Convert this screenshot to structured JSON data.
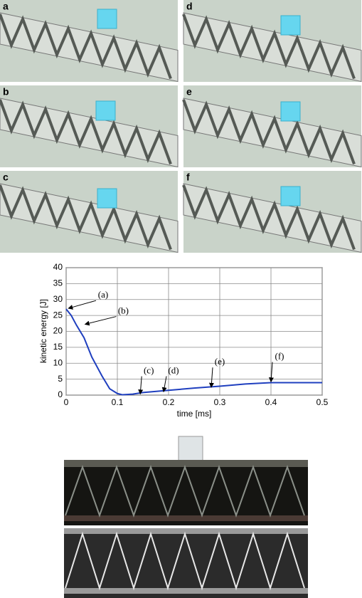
{
  "panels": {
    "labels": [
      "a",
      "b",
      "c",
      "d",
      "e",
      "f"
    ]
  },
  "chart_data": {
    "type": "line",
    "x_label": "time [ms]",
    "y_label": "kinetic energy [J]",
    "x": [
      0,
      0.01,
      0.02,
      0.035,
      0.05,
      0.07,
      0.085,
      0.1,
      0.11,
      0.13,
      0.15,
      0.2,
      0.25,
      0.3,
      0.35,
      0.4,
      0.45,
      0.5
    ],
    "series": [
      {
        "color": "#1f3fbf",
        "values": [
          27,
          25,
          22,
          18,
          12,
          6,
          2,
          0.5,
          0.1,
          0.3,
          0.8,
          1.5,
          2.2,
          2.8,
          3.5,
          3.9,
          3.9,
          3.9
        ]
      }
    ],
    "xlim": [
      0,
      0.5
    ],
    "xticks": [
      0,
      0.1,
      0.2,
      0.3,
      0.4,
      0.5
    ],
    "ylim": [
      0,
      40
    ],
    "yticks": [
      0,
      5,
      10,
      15,
      20,
      25,
      30,
      35,
      40
    ],
    "grid": true,
    "annotations": [
      "(a)",
      "(b)",
      "(c)",
      "(d)",
      "(e)",
      "(f)"
    ]
  }
}
